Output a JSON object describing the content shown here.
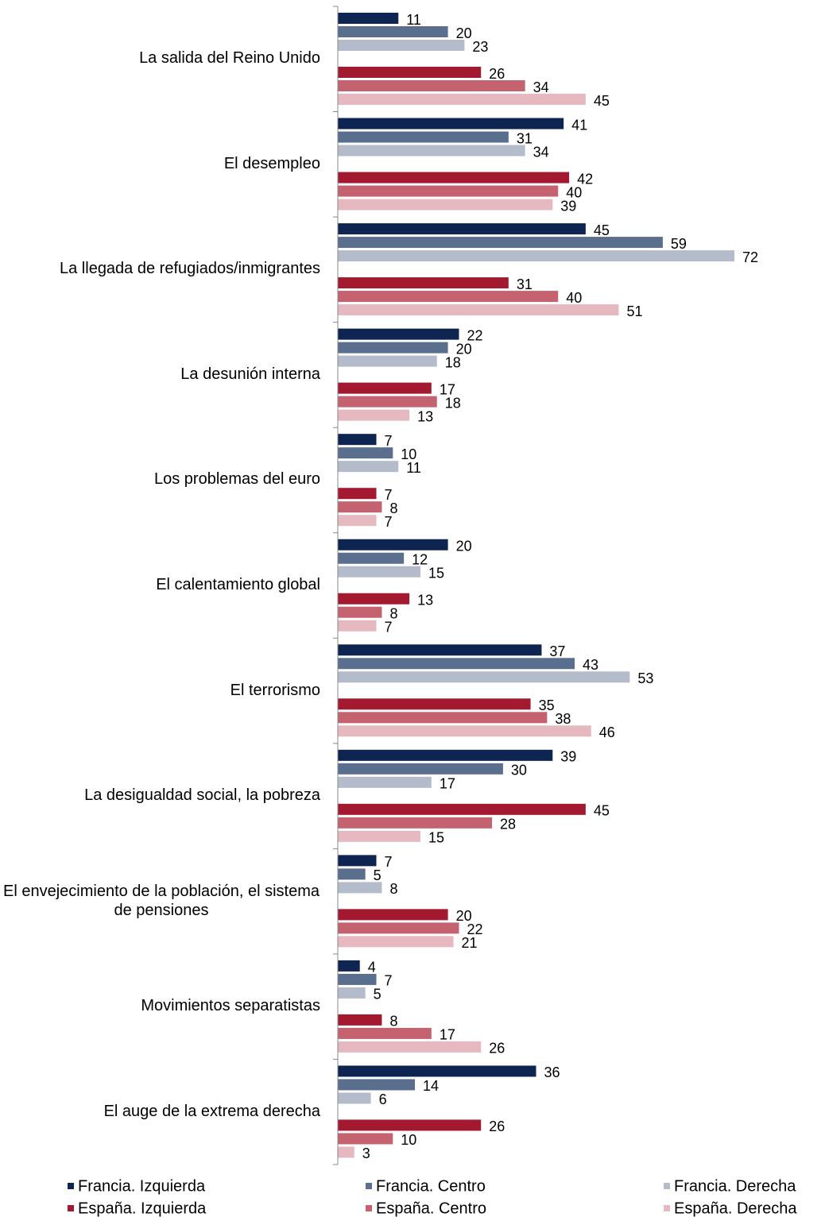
{
  "chart_data": {
    "type": "bar",
    "orientation": "horizontal",
    "categories": [
      "La salida del Reino Unido",
      "El desempleo",
      "La llegada de refugiados/inmigrantes",
      "La desunión interna",
      "Los problemas del euro",
      "El calentamiento global",
      "El terrorismo",
      "La desigualdad social, la pobreza",
      "El envejecimiento de la población, el sistema de pensiones",
      "Movimientos separatistas",
      "El auge de la extrema derecha"
    ],
    "series": [
      {
        "name": "Francia. Izquierda",
        "color": "#0d2550",
        "values": [
          11,
          41,
          45,
          22,
          7,
          20,
          37,
          39,
          7,
          4,
          36
        ]
      },
      {
        "name": "Francia. Centro",
        "color": "#5a6e8e",
        "values": [
          20,
          31,
          59,
          20,
          10,
          12,
          43,
          30,
          5,
          7,
          14
        ]
      },
      {
        "name": "Francia. Derecha",
        "color": "#b4bccb",
        "values": [
          23,
          34,
          72,
          18,
          11,
          15,
          53,
          17,
          8,
          5,
          6
        ]
      },
      {
        "name": "España. Izquierda",
        "color": "#a31a30",
        "values": [
          26,
          42,
          31,
          17,
          7,
          13,
          35,
          45,
          20,
          8,
          26
        ]
      },
      {
        "name": "España. Centro",
        "color": "#c4636f",
        "values": [
          34,
          40,
          40,
          18,
          8,
          8,
          38,
          28,
          22,
          17,
          10
        ]
      },
      {
        "name": "España. Derecha",
        "color": "#e6b9c0",
        "values": [
          45,
          39,
          51,
          13,
          7,
          7,
          46,
          15,
          21,
          26,
          3
        ]
      }
    ],
    "xlim": [
      0,
      72
    ],
    "legend": "bottom"
  }
}
